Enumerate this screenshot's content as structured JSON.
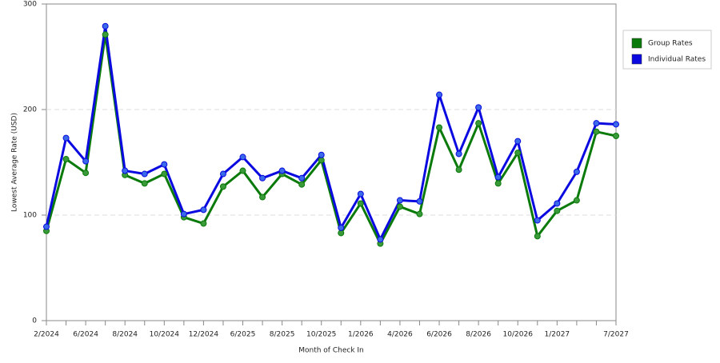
{
  "chart_data": {
    "type": "line",
    "x_label": "Month of Check In",
    "y_label": "Lowest Average Rate (USD)",
    "categories": [
      "2/2024",
      null,
      "6/2024",
      null,
      "8/2024",
      null,
      "10/2024",
      null,
      "12/2024",
      null,
      "6/2025",
      null,
      "8/2025",
      null,
      "10/2025",
      null,
      "1/2026",
      null,
      "4/2026",
      null,
      "6/2026",
      null,
      "8/2026",
      null,
      "10/2026",
      null,
      "1/2027",
      null,
      null,
      "7/2027"
    ],
    "series": [
      {
        "name": "Group Rates",
        "color": "#0a7a0a",
        "marker": "#3a9a3a",
        "values": [
          85,
          153,
          140,
          271,
          138,
          130,
          139,
          98,
          92,
          127,
          142,
          117,
          139,
          129,
          152,
          83,
          111,
          73,
          108,
          101,
          183,
          143,
          187,
          130,
          159,
          80,
          104,
          114,
          179,
          175
        ]
      },
      {
        "name": "Individual Rates",
        "color": "#0a0ae0",
        "marker": "#3a6ae8",
        "values": [
          89,
          173,
          151,
          279,
          142,
          139,
          148,
          101,
          105,
          139,
          155,
          135,
          142,
          135,
          157,
          88,
          120,
          77,
          114,
          113,
          214,
          158,
          202,
          136,
          170,
          95,
          111,
          141,
          187,
          186
        ]
      }
    ],
    "ylim": [
      0,
      300
    ],
    "yticks": [
      0,
      100,
      200,
      300
    ],
    "grid": true,
    "legend": "right"
  }
}
